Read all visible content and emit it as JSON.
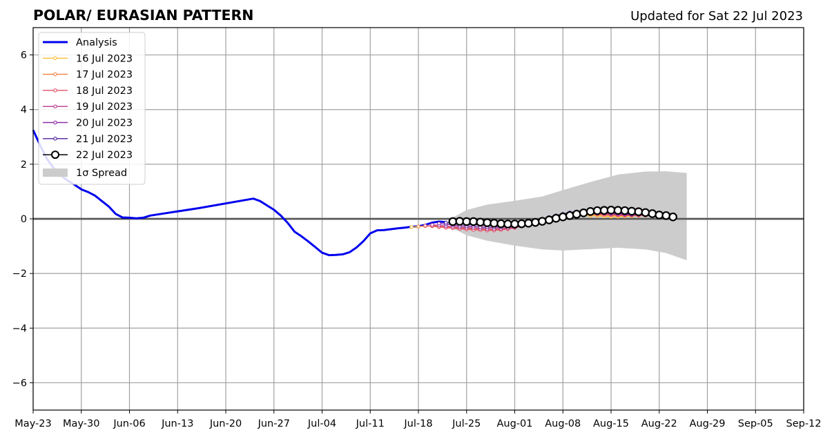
{
  "chart_data": {
    "type": "line",
    "title": "POLAR/ EURASIAN  PATTERN",
    "subtitle": "Updated for Sat 22 Jul 2023",
    "xlabel": "",
    "ylabel": "",
    "ylim": [
      -7,
      7
    ],
    "xlim": [
      "2023-05-23",
      "2023-09-12"
    ],
    "x_tick_labels": [
      "May-23",
      "May-30",
      "Jun-06",
      "Jun-13",
      "Jun-20",
      "Jun-27",
      "Jul-04",
      "Jul-11",
      "Jul-18",
      "Jul-25",
      "Aug-01",
      "Aug-08",
      "Aug-15",
      "Aug-22",
      "Aug-29",
      "Sep-05",
      "Sep-12"
    ],
    "y_ticks": [
      -6,
      -4,
      -2,
      0,
      2,
      4,
      6
    ],
    "y_tick_labels": [
      "−6",
      "−4",
      "−2",
      "0",
      "2",
      "4",
      "6"
    ],
    "grid": true,
    "legend_position": "top-left",
    "analysis": {
      "name": "Analysis",
      "color": "#0000ee",
      "points": [
        [
          "2023-05-23",
          3.25
        ],
        [
          "2023-05-24",
          2.7
        ],
        [
          "2023-05-25",
          2.2
        ],
        [
          "2023-05-26",
          1.85
        ],
        [
          "2023-05-27",
          1.6
        ],
        [
          "2023-05-28",
          1.4
        ],
        [
          "2023-05-29",
          1.25
        ],
        [
          "2023-05-30",
          1.08
        ],
        [
          "2023-05-31",
          0.98
        ],
        [
          "2023-06-01",
          0.85
        ],
        [
          "2023-06-02",
          0.65
        ],
        [
          "2023-06-03",
          0.45
        ],
        [
          "2023-06-04",
          0.18
        ],
        [
          "2023-06-05",
          0.05
        ],
        [
          "2023-06-06",
          0.04
        ],
        [
          "2023-06-07",
          0.02
        ],
        [
          "2023-06-08",
          0.04
        ],
        [
          "2023-06-09",
          0.12
        ],
        [
          "2023-06-16",
          0.39
        ],
        [
          "2023-06-24",
          0.74
        ],
        [
          "2023-06-25",
          0.65
        ],
        [
          "2023-06-26",
          0.49
        ],
        [
          "2023-06-27",
          0.33
        ],
        [
          "2023-06-28",
          0.12
        ],
        [
          "2023-06-29",
          -0.15
        ],
        [
          "2023-06-30",
          -0.47
        ],
        [
          "2023-07-01",
          -0.64
        ],
        [
          "2023-07-02",
          -0.83
        ],
        [
          "2023-07-03",
          -1.03
        ],
        [
          "2023-07-04",
          -1.24
        ],
        [
          "2023-07-05",
          -1.33
        ],
        [
          "2023-07-06",
          -1.32
        ],
        [
          "2023-07-07",
          -1.3
        ],
        [
          "2023-07-08",
          -1.22
        ],
        [
          "2023-07-09",
          -1.05
        ],
        [
          "2023-07-10",
          -0.82
        ],
        [
          "2023-07-11",
          -0.53
        ],
        [
          "2023-07-12",
          -0.42
        ],
        [
          "2023-07-13",
          -0.41
        ],
        [
          "2023-07-14",
          -0.38
        ],
        [
          "2023-07-15",
          -0.35
        ],
        [
          "2023-07-16",
          -0.32
        ],
        [
          "2023-07-17",
          -0.29
        ],
        [
          "2023-07-18",
          -0.27
        ],
        [
          "2023-07-19",
          -0.22
        ],
        [
          "2023-07-20",
          -0.14
        ],
        [
          "2023-07-21",
          -0.1
        ],
        [
          "2023-07-22",
          -0.12
        ]
      ]
    },
    "forecasts": [
      {
        "name": "16 Jul 2023",
        "color": "#ffbb33",
        "start": "2023-07-17",
        "values": [
          -0.3,
          -0.28,
          -0.26,
          -0.25,
          -0.27,
          -0.29,
          -0.31,
          -0.33,
          -0.35,
          -0.37,
          -0.39,
          -0.4,
          -0.4,
          -0.39,
          -0.36,
          -0.3,
          -0.23,
          -0.15,
          -0.07,
          0.0,
          0.05,
          0.09,
          0.11,
          0.12,
          0.13,
          0.13,
          0.12,
          0.11,
          0.09,
          0.08,
          0.08,
          0.09,
          0.1,
          0.11,
          0.12,
          0.12
        ]
      },
      {
        "name": "17 Jul 2023",
        "color": "#f08040",
        "start": "2023-07-18",
        "values": [
          -0.28,
          -0.26,
          -0.27,
          -0.3,
          -0.32,
          -0.34,
          -0.36,
          -0.38,
          -0.4,
          -0.41,
          -0.42,
          -0.42,
          -0.4,
          -0.37,
          -0.32,
          -0.25,
          -0.17,
          -0.09,
          -0.01,
          0.05,
          0.1,
          0.13,
          0.15,
          0.16,
          0.16,
          0.16,
          0.15,
          0.14,
          0.13,
          0.12,
          0.12,
          0.12,
          0.12,
          0.12,
          0.12
        ]
      },
      {
        "name": "18 Jul 2023",
        "color": "#e05068",
        "start": "2023-07-19",
        "values": [
          -0.25,
          -0.26,
          -0.29,
          -0.32,
          -0.34,
          -0.36,
          -0.38,
          -0.4,
          -0.41,
          -0.42,
          -0.42,
          -0.4,
          -0.37,
          -0.33,
          -0.27,
          -0.2,
          -0.12,
          -0.05,
          0.02,
          0.08,
          0.12,
          0.15,
          0.17,
          0.18,
          0.18,
          0.17,
          0.16,
          0.15,
          0.14,
          0.13,
          0.13,
          0.13,
          0.13,
          0.13
        ]
      },
      {
        "name": "19 Jul 2023",
        "color": "#b8348c",
        "start": "2023-07-20",
        "values": [
          -0.22,
          -0.24,
          -0.27,
          -0.29,
          -0.31,
          -0.33,
          -0.34,
          -0.36,
          -0.37,
          -0.37,
          -0.36,
          -0.34,
          -0.3,
          -0.25,
          -0.19,
          -0.12,
          -0.05,
          0.02,
          0.08,
          0.13,
          0.17,
          0.19,
          0.21,
          0.21,
          0.2,
          0.19,
          0.18,
          0.16,
          0.15,
          0.14,
          0.14,
          0.13,
          0.13
        ]
      },
      {
        "name": "20 Jul 2023",
        "color": "#8a2aa6",
        "start": "2023-07-21",
        "values": [
          -0.17,
          -0.2,
          -0.23,
          -0.25,
          -0.27,
          -0.28,
          -0.3,
          -0.31,
          -0.31,
          -0.3,
          -0.28,
          -0.25,
          -0.2,
          -0.14,
          -0.08,
          -0.01,
          0.06,
          0.12,
          0.17,
          0.21,
          0.24,
          0.25,
          0.25,
          0.24,
          0.23,
          0.21,
          0.19,
          0.18,
          0.16,
          0.15,
          0.14,
          0.14
        ]
      },
      {
        "name": "21 Jul 2023",
        "color": "#4b1c9a",
        "start": "2023-07-22",
        "values": [
          -0.14,
          -0.16,
          -0.18,
          -0.2,
          -0.21,
          -0.22,
          -0.24,
          -0.24,
          -0.24,
          -0.23,
          -0.21,
          -0.17,
          -0.12,
          -0.07,
          -0.01,
          0.06,
          0.12,
          0.18,
          0.23,
          0.27,
          0.29,
          0.29,
          0.29,
          0.27,
          0.25,
          0.23,
          0.21,
          0.19,
          0.17,
          0.15,
          0.14
        ]
      },
      {
        "name": "22 Jul 2023",
        "color": "#000000",
        "start": "2023-07-23",
        "values": [
          -0.1,
          -0.09,
          -0.1,
          -0.1,
          -0.12,
          -0.14,
          -0.16,
          -0.18,
          -0.19,
          -0.19,
          -0.18,
          -0.16,
          -0.13,
          -0.09,
          -0.04,
          0.02,
          0.07,
          0.12,
          0.17,
          0.22,
          0.27,
          0.3,
          0.31,
          0.32,
          0.31,
          0.3,
          0.28,
          0.26,
          0.23,
          0.19,
          0.14,
          0.12,
          0.07
        ]
      }
    ],
    "spread": {
      "name": "1σ Spread",
      "color": "#cccccc",
      "points": [
        [
          "2023-07-23",
          -0.35,
          0.05
        ],
        [
          "2023-07-25",
          -0.6,
          0.32
        ],
        [
          "2023-07-28",
          -0.8,
          0.52
        ],
        [
          "2023-08-01",
          -0.98,
          0.66
        ],
        [
          "2023-08-05",
          -1.12,
          0.82
        ],
        [
          "2023-08-08",
          -1.16,
          1.05
        ],
        [
          "2023-08-12",
          -1.11,
          1.35
        ],
        [
          "2023-08-16",
          -1.06,
          1.62
        ],
        [
          "2023-08-20",
          -1.12,
          1.73
        ],
        [
          "2023-08-23",
          -1.25,
          1.74
        ],
        [
          "2023-08-26",
          -1.52,
          1.68
        ]
      ]
    }
  }
}
